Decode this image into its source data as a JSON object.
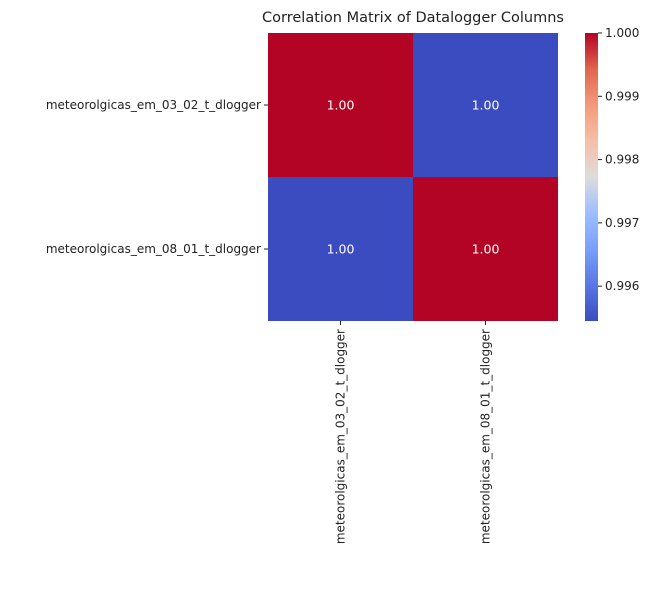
{
  "chart_data": {
    "type": "heatmap",
    "title": "Correlation Matrix of Datalogger Columns",
    "row_labels": [
      "meteorolgicas_em_03_02_t_dlogger",
      "meteorolgicas_em_08_01_t_dlogger"
    ],
    "col_labels": [
      "meteorolgicas_em_03_02_t_dlogger",
      "meteorolgicas_em_08_01_t_dlogger"
    ],
    "values": [
      [
        1.0,
        0.99545
      ],
      [
        0.99545,
        1.0
      ]
    ],
    "annotations": [
      [
        "1.00",
        "1.00"
      ],
      [
        "1.00",
        "1.00"
      ]
    ],
    "colormap": "coolwarm",
    "colorbar": {
      "range": [
        0.99545,
        1.0
      ],
      "ticks": [
        0.996,
        0.997,
        0.998,
        0.999,
        1.0
      ],
      "tick_labels": [
        "0.996",
        "0.997",
        "0.998",
        "0.999",
        "1.000"
      ],
      "position": "right"
    },
    "colors": {
      "high": "#b40426",
      "low": "#3b4cc0"
    }
  }
}
